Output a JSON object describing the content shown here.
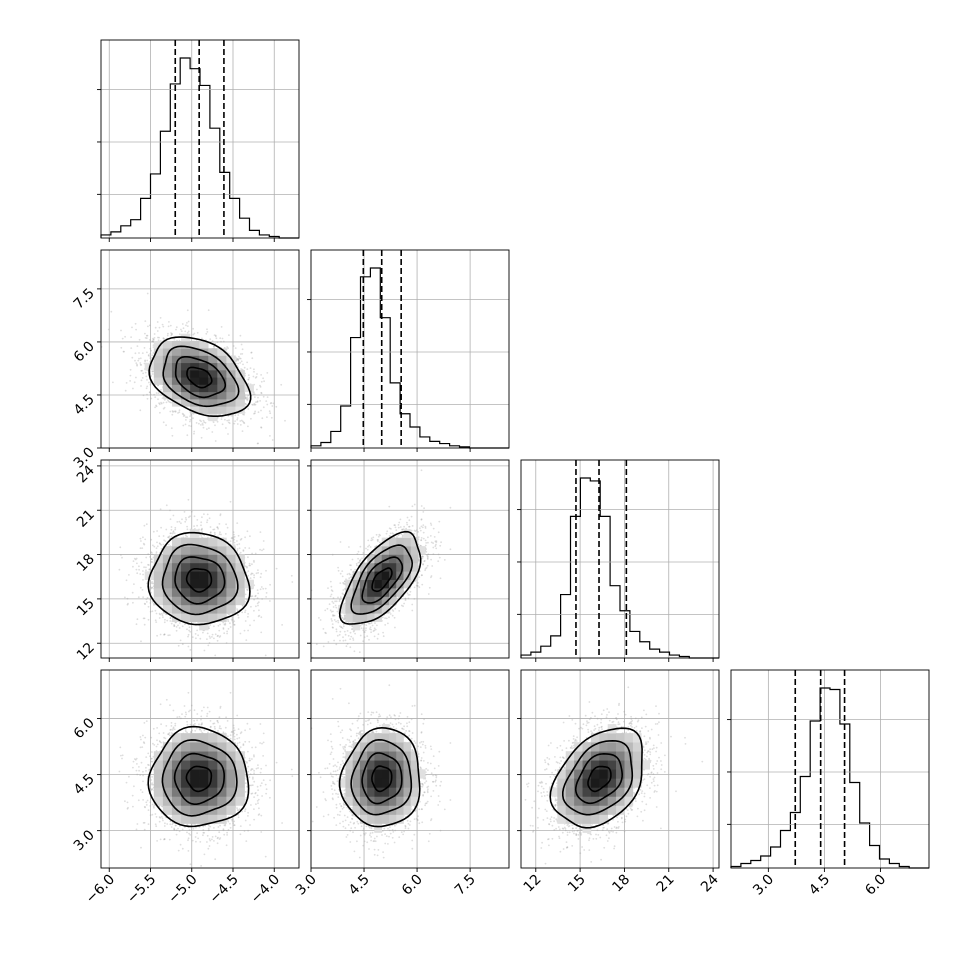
{
  "chart_data": {
    "type": "corner",
    "title": "",
    "parameters": [
      "",
      "",
      "",
      ""
    ],
    "ranges": [
      [
        -6.1,
        -3.7
      ],
      [
        3.0,
        8.6
      ],
      [
        11.0,
        24.4
      ],
      [
        2.0,
        7.3
      ]
    ],
    "ticks": [
      {
        "values": [
          -6.0,
          -5.5,
          -5.0,
          -4.5,
          -4.0
        ],
        "labels": [
          "−6.0",
          "−5.5",
          "−5.0",
          "−4.5",
          "−4.0"
        ]
      },
      {
        "values": [
          3.0,
          4.5,
          6.0,
          7.5
        ],
        "labels": [
          "3.0",
          "4.5",
          "6.0",
          "7.5"
        ]
      },
      {
        "values": [
          12,
          15,
          18,
          21,
          24
        ],
        "labels": [
          "12",
          "15",
          "18",
          "21",
          "24"
        ]
      },
      {
        "values": [
          3.0,
          4.5,
          6.0
        ],
        "labels": [
          "3.0",
          "4.5",
          "6.0"
        ]
      }
    ],
    "quantiles": [
      [
        -5.2,
        -4.91,
        -4.61
      ],
      [
        4.48,
        5.0,
        5.55
      ],
      [
        14.72,
        16.28,
        18.13
      ],
      [
        3.72,
        4.4,
        5.04
      ]
    ],
    "histograms": [
      {
        "edges_start": -6.1,
        "bin_width": 0.12,
        "counts": [
          2,
          4,
          8,
          12,
          26,
          42,
          70,
          101,
          118,
          111,
          100,
          72,
          43,
          26,
          13,
          5,
          2,
          1,
          0,
          0
        ]
      },
      {
        "edges_start": 3.0,
        "bin_width": 0.28,
        "counts": [
          2,
          5,
          15,
          38,
          100,
          155,
          163,
          118,
          59,
          31,
          19,
          10,
          6,
          4,
          2,
          1,
          0,
          0,
          0,
          0
        ]
      },
      {
        "edges_start": 11.0,
        "bin_width": 0.67,
        "counts": [
          2,
          4,
          8,
          15,
          43,
          96,
          122,
          120,
          96,
          49,
          32,
          18,
          11,
          6,
          4,
          2,
          1,
          0,
          0,
          0
        ]
      },
      {
        "edges_start": 2.0,
        "bin_width": 0.265,
        "counts": [
          1,
          3,
          5,
          8,
          14,
          25,
          37,
          61,
          98,
          120,
          119,
          96,
          57,
          30,
          15,
          6,
          3,
          1,
          0,
          0
        ]
      }
    ],
    "pairs": [
      {
        "row": 1,
        "col": 0,
        "mean": [
          -4.91,
          5.0
        ],
        "sd": [
          0.3,
          0.56
        ],
        "corr": -0.35
      },
      {
        "row": 2,
        "col": 0,
        "mean": [
          -4.91,
          16.3
        ],
        "sd": [
          0.3,
          1.55
        ],
        "corr": -0.05
      },
      {
        "row": 2,
        "col": 1,
        "mean": [
          5.0,
          16.3
        ],
        "sd": [
          0.56,
          1.55
        ],
        "corr": 0.62
      },
      {
        "row": 3,
        "col": 0,
        "mean": [
          -4.91,
          4.4
        ],
        "sd": [
          0.3,
          0.66
        ],
        "corr": 0.0
      },
      {
        "row": 3,
        "col": 1,
        "mean": [
          5.0,
          4.4
        ],
        "sd": [
          0.56,
          0.66
        ],
        "corr": 0.05
      },
      {
        "row": 3,
        "col": 2,
        "mean": [
          16.3,
          4.4
        ],
        "sd": [
          1.55,
          0.66
        ],
        "corr": 0.35
      }
    ],
    "contour_levels_sigma": [
      0.5,
      1.0,
      1.5,
      2.0
    ],
    "colors": {
      "line": "#000000",
      "grid": "#b0b0b0",
      "points": "#a0a0a0",
      "density": "#000000"
    },
    "grid": true
  }
}
